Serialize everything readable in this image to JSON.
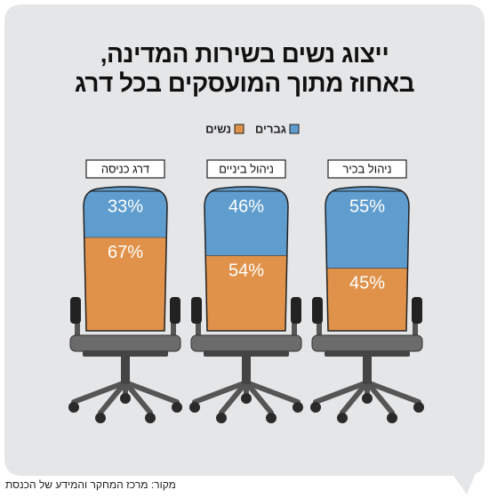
{
  "title": "ייצוג נשים בשירות המדינה,\nבאחוז מתוך המועסקים בכל דרג",
  "source": "מקור: מרכז המחקר והמידע של הכנסת",
  "chart_data": {
    "type": "bar",
    "stacked": true,
    "categories": [
      "ניהול בכיר",
      "ניהול ביניים",
      "דרג כניסה"
    ],
    "series": [
      {
        "name": "נשים",
        "color": "#e0924a",
        "values": [
          45,
          54,
          67
        ],
        "value_labels": [
          "45%",
          "54%",
          "67%"
        ]
      },
      {
        "name": "גברים",
        "color": "#5f9dcf",
        "values": [
          55,
          46,
          33
        ],
        "value_labels": [
          "55%",
          "46%",
          "33%"
        ]
      }
    ],
    "ylim": [
      0,
      100
    ]
  }
}
